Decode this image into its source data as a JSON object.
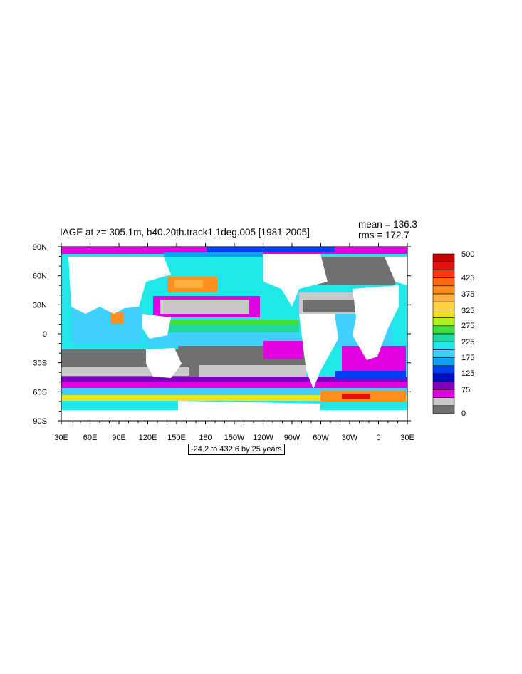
{
  "figure": {
    "title": "IAGE at z= 305.1m, b40.20th.track1.1deg.005 [1981-2005]",
    "mean_text": "mean = 136.3",
    "rms_text": "rms = 172.7",
    "range_text": "-24.2 to 432.6 by 25 years"
  },
  "axes": {
    "x_ticks": [
      "30E",
      "60E",
      "90E",
      "120E",
      "150E",
      "180",
      "150W",
      "120W",
      "90W",
      "60W",
      "30W",
      "0",
      "30E"
    ],
    "y_ticks": [
      "90N",
      "60N",
      "30N",
      "0",
      "30S",
      "60S",
      "90S"
    ]
  },
  "colorbar": {
    "labels": [
      "500",
      "425",
      "375",
      "325",
      "275",
      "225",
      "175",
      "125",
      "75",
      "0"
    ],
    "colors": [
      "#c40000",
      "#e21010",
      "#ff3a10",
      "#ff6a10",
      "#ff9020",
      "#ffb040",
      "#ffd040",
      "#f0e020",
      "#b0f020",
      "#40e040",
      "#20d8a0",
      "#20e8e8",
      "#40d0ff",
      "#10a0f0",
      "#0040f0",
      "#0010c0",
      "#8000c0",
      "#e000e0",
      "#c8c8c8",
      "#707070"
    ]
  },
  "colors": {
    "land": "#ffffff",
    "deep_gray": "#707070",
    "light_gray": "#c8c8c8"
  }
}
